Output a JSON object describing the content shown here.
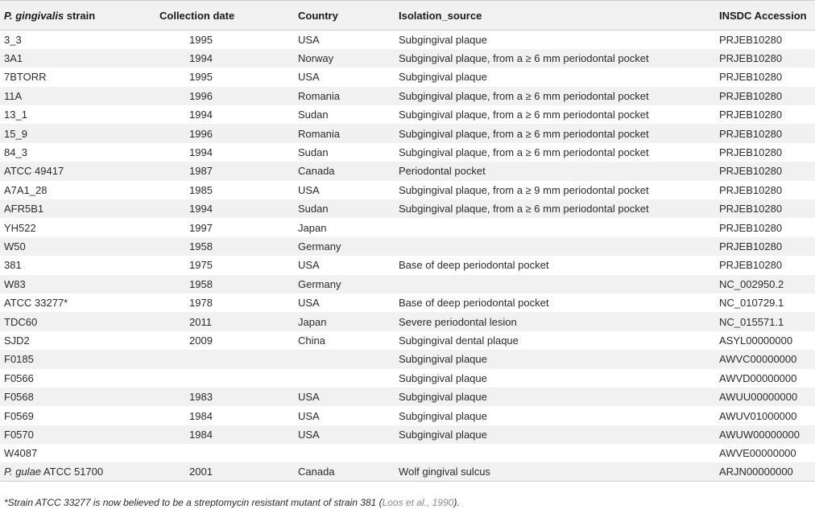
{
  "table": {
    "headers": {
      "strain_species": "P. gingivalis",
      "strain_suffix": " strain",
      "collection_date": "Collection date",
      "country": "Country",
      "isolation_source": "Isolation_source",
      "accession": "INSDC Accession"
    },
    "rows": [
      {
        "strain": "3_3",
        "date": "1995",
        "country": "USA",
        "source": "Subgingival plaque",
        "accession": "PRJEB10280"
      },
      {
        "strain": "3A1",
        "date": "1994",
        "country": "Norway",
        "source": "Subgingival plaque, from a ≥ 6 mm periodontal pocket",
        "accession": "PRJEB10280"
      },
      {
        "strain": "7BTORR",
        "date": "1995",
        "country": "USA",
        "source": "Subgingival plaque",
        "accession": "PRJEB10280"
      },
      {
        "strain": "11A",
        "date": "1996",
        "country": "Romania",
        "source": "Subgingival plaque, from a ≥ 6 mm periodontal pocket",
        "accession": "PRJEB10280"
      },
      {
        "strain": "13_1",
        "date": "1994",
        "country": "Sudan",
        "source": "Subgingival plaque, from a ≥ 6 mm periodontal pocket",
        "accession": "PRJEB10280"
      },
      {
        "strain": "15_9",
        "date": "1996",
        "country": "Romania",
        "source": "Subgingival plaque, from a ≥ 6 mm periodontal pocket",
        "accession": "PRJEB10280"
      },
      {
        "strain": "84_3",
        "date": "1994",
        "country": "Sudan",
        "source": "Subgingival plaque, from a ≥ 6 mm periodontal pocket",
        "accession": "PRJEB10280"
      },
      {
        "strain": "ATCC 49417",
        "date": "1987",
        "country": "Canada",
        "source": "Periodontal pocket",
        "accession": "PRJEB10280"
      },
      {
        "strain": "A7A1_28",
        "date": "1985",
        "country": "USA",
        "source": "Subgingival plaque, from a ≥ 9 mm periodontal pocket",
        "accession": "PRJEB10280"
      },
      {
        "strain": "AFR5B1",
        "date": "1994",
        "country": "Sudan",
        "source": "Subgingival plaque, from a ≥ 6 mm periodontal pocket",
        "accession": "PRJEB10280"
      },
      {
        "strain": "YH522",
        "date": "1997",
        "country": "Japan",
        "source": "",
        "accession": "PRJEB10280"
      },
      {
        "strain": "W50",
        "date": "1958",
        "country": "Germany",
        "source": "",
        "accession": "PRJEB10280"
      },
      {
        "strain": "381",
        "date": "1975",
        "country": "USA",
        "source": "Base of deep periodontal pocket",
        "accession": "PRJEB10280"
      },
      {
        "strain": "W83",
        "date": "1958",
        "country": "Germany",
        "source": "",
        "accession": "NC_002950.2"
      },
      {
        "strain": "ATCC 33277*",
        "date": "1978",
        "country": "USA",
        "source": "Base of deep periodontal pocket",
        "accession": "NC_010729.1"
      },
      {
        "strain": "TDC60",
        "date": "2011",
        "country": "Japan",
        "source": "Severe periodontal lesion",
        "accession": "NC_015571.1"
      },
      {
        "strain": "SJD2",
        "date": "2009",
        "country": "China",
        "source": "Subgingival dental plaque",
        "accession": "ASYL00000000"
      },
      {
        "strain": "F0185",
        "date": "",
        "country": "",
        "source": "Subgingival plaque",
        "accession": "AWVC00000000"
      },
      {
        "strain": "F0566",
        "date": "",
        "country": "",
        "source": "Subgingival plaque",
        "accession": "AWVD00000000"
      },
      {
        "strain": "F0568",
        "date": "1983",
        "country": "USA",
        "source": "Subgingival plaque",
        "accession": "AWUU00000000"
      },
      {
        "strain": "F0569",
        "date": "1984",
        "country": "USA",
        "source": "Subgingival plaque",
        "accession": "AWUV01000000"
      },
      {
        "strain": "F0570",
        "date": "1984",
        "country": "USA",
        "source": "Subgingival plaque",
        "accession": "AWUW00000000"
      },
      {
        "strain": "W4087",
        "date": "",
        "country": "",
        "source": "",
        "accession": "AWVE00000000"
      },
      {
        "strain_italic": "P. gulae",
        "strain": " ATCC 51700",
        "date": "2001",
        "country": "Canada",
        "source": "Wolf gingival sulcus",
        "accession": "ARJN00000000"
      }
    ]
  },
  "footnote": {
    "text": "*Strain ATCC 33277 is now believed to be a streptomycin resistant mutant of strain 381 (",
    "reference": "Loos et al., 1990",
    "end": ")."
  }
}
